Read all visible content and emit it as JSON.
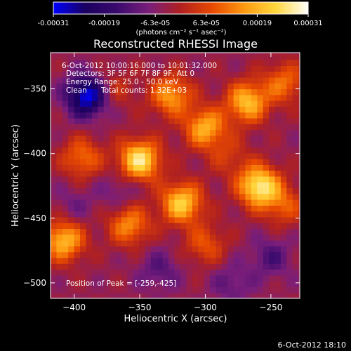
{
  "colorbar": {
    "tick_labels": [
      "-0.00031",
      "-0.00019",
      "-6.3e-05",
      "6.3e-05",
      "0.00019",
      "0.00031"
    ],
    "unit_label": "(photons cm⁻² s⁻¹ asec⁻²)",
    "min": -0.00031,
    "max": 0.00031,
    "colormap_stops": [
      "#0000ff",
      "#1a0060",
      "#3a0a6e",
      "#7a1e7a",
      "#b02020",
      "#e84a00",
      "#ff9a10",
      "#ffd840",
      "#ffffff"
    ]
  },
  "chart_data": {
    "type": "heatmap",
    "title": "Reconstructed RHESSI Image",
    "xlabel": "Heliocentric X (arcsec)",
    "ylabel": "Heliocentric Y (arcsec)",
    "xlim": [
      -418,
      -228
    ],
    "ylim": [
      -512,
      -322
    ],
    "x_ticks": [
      -400,
      -350,
      -300,
      -250
    ],
    "y_ticks": [
      -350,
      -400,
      -450,
      -500
    ],
    "x_tick_labels": [
      "−400",
      "−350",
      "−300",
      "−250"
    ],
    "y_tick_labels": [
      "−350",
      "−400",
      "−450",
      "−500"
    ],
    "annotations": [
      "6-Oct-2012 10:00:16.000 to 10:01:32.000",
      "Detectors: 3F 5F 6F 7F 8F 9F, Att 0",
      "Energy Range: 25.0 - 50.0 keV",
      "Clean",
      "Total counts: 1.32E+03"
    ],
    "peak_label": "Position of Peak = [-259,-425]",
    "peak_position": [
      -259,
      -425
    ],
    "blobs": [
      {
        "x": -259,
        "y": -425,
        "value": 0.00031
      },
      {
        "x": -350,
        "y": -405,
        "value": 0.0003
      },
      {
        "x": -318,
        "y": -438,
        "value": 0.00026
      },
      {
        "x": -268,
        "y": -360,
        "value": 0.00024
      },
      {
        "x": -300,
        "y": -380,
        "value": 0.00022
      },
      {
        "x": -408,
        "y": -467,
        "value": 0.00024
      },
      {
        "x": -326,
        "y": -355,
        "value": 0.0002
      },
      {
        "x": -358,
        "y": -455,
        "value": 0.00018
      },
      {
        "x": -394,
        "y": -403,
        "value": 0.00015
      },
      {
        "x": -240,
        "y": -345,
        "value": 0.00015
      },
      {
        "x": -240,
        "y": -440,
        "value": 0.00012
      },
      {
        "x": -300,
        "y": -470,
        "value": 0.00012
      },
      {
        "x": -370,
        "y": -350,
        "value": 8e-05
      },
      {
        "x": -282,
        "y": -402,
        "value": 8e-05
      },
      {
        "x": -390,
        "y": -355,
        "value": -0.00028
      },
      {
        "x": -365,
        "y": -428,
        "value": -6e-05
      },
      {
        "x": -335,
        "y": -490,
        "value": -8e-05
      },
      {
        "x": -280,
        "y": -500,
        "value": -7e-05
      },
      {
        "x": -250,
        "y": -480,
        "value": -9e-05
      },
      {
        "x": -400,
        "y": -440,
        "value": -5e-05
      }
    ]
  },
  "footer": {
    "timestamp": "6-Oct-2012 18:10"
  }
}
